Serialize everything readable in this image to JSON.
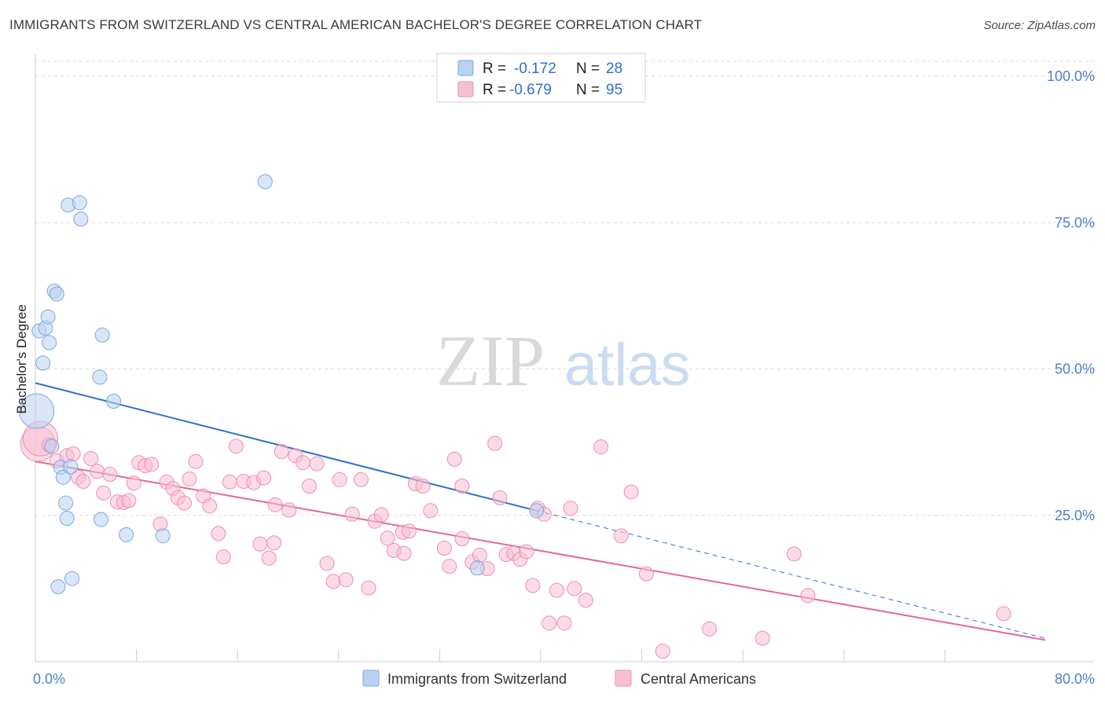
{
  "header": {
    "title": "IMMIGRANTS FROM SWITZERLAND VS CENTRAL AMERICAN BACHELOR'S DEGREE CORRELATION CHART",
    "source": "Source: ZipAtlas.com"
  },
  "watermark": {
    "zip": "ZIP",
    "atlas": "atlas"
  },
  "colors": {
    "blue_fill": "#b9d1f2",
    "blue_stroke": "#7ea6e0",
    "blue_line": "#2f6fd0",
    "pink_fill": "#f7c0d2",
    "pink_stroke": "#ec8fb0",
    "pink_line": "#e46791",
    "grid": "#d9d9d9",
    "tick_label": "#4a7fd0"
  },
  "legend": {
    "rows": [
      {
        "r_label": "R =",
        "r_value": "-0.172",
        "n_label": "N =",
        "n_value": "28"
      },
      {
        "r_label": "R =",
        "r_value": "-0.679",
        "n_label": "N =",
        "n_value": "95"
      }
    ]
  },
  "chart_data": {
    "type": "scatter",
    "title": "IMMIGRANTS FROM SWITZERLAND VS CENTRAL AMERICAN BACHELOR'S DEGREE CORRELATION CHART",
    "xlabel": "",
    "ylabel": "Bachelor's Degree",
    "xlim": [
      0,
      80
    ],
    "ylim": [
      0,
      100
    ],
    "x_tick_labels": [
      "0.0%",
      "80.0%"
    ],
    "y_ticks": [
      25,
      50,
      75,
      100
    ],
    "y_tick_labels": [
      "25.0%",
      "50.0%",
      "75.0%",
      "100.0%"
    ],
    "grid": true,
    "legend_position": "top-center",
    "series": [
      {
        "name": "Immigrants from Switzerland",
        "color": "#b9d1f2",
        "points": [
          [
            0.1,
            42.8
          ],
          [
            0.3,
            56.5
          ],
          [
            0.6,
            51
          ],
          [
            0.8,
            57
          ],
          [
            1.0,
            58.9
          ],
          [
            1.1,
            54.5
          ],
          [
            1.5,
            63.3
          ],
          [
            1.7,
            62.8
          ],
          [
            1.3,
            36.8
          ],
          [
            2.0,
            33.2
          ],
          [
            2.2,
            31.5
          ],
          [
            2.4,
            27.1
          ],
          [
            2.5,
            24.5
          ],
          [
            2.6,
            78
          ],
          [
            2.8,
            33.3
          ],
          [
            3.5,
            78.4
          ],
          [
            3.6,
            75.6
          ],
          [
            5.1,
            48.6
          ],
          [
            5.3,
            55.8
          ],
          [
            6.2,
            44.5
          ],
          [
            7.2,
            21.7
          ],
          [
            10.1,
            21.5
          ],
          [
            18.2,
            82
          ],
          [
            1.8,
            12.8
          ],
          [
            2.9,
            14.2
          ],
          [
            5.2,
            24.3
          ],
          [
            35,
            16
          ],
          [
            39.7,
            25.8
          ]
        ],
        "sizes": [
          1,
          0,
          0,
          0,
          0,
          0,
          0,
          0,
          0,
          0,
          0,
          0,
          0,
          0,
          0,
          0,
          0,
          0,
          0,
          0,
          0,
          0,
          0,
          0,
          0,
          0,
          0,
          0
        ],
        "trend": {
          "x": [
            0,
            39.7
          ],
          "y": [
            47.6,
            25.8
          ],
          "dashed_x": [
            39.7,
            80
          ],
          "dashed_y": [
            25.8,
            4
          ]
        }
      },
      {
        "name": "Central Americans",
        "color": "#f7c0d2",
        "points": [
          [
            0.2,
            37.2
          ],
          [
            0.4,
            38.1
          ],
          [
            1.1,
            37
          ],
          [
            1.7,
            34.3
          ],
          [
            2.5,
            35.2
          ],
          [
            3.0,
            35.5
          ],
          [
            3.4,
            31.5
          ],
          [
            3.8,
            30.8
          ],
          [
            4.4,
            34.7
          ],
          [
            4.9,
            32.5
          ],
          [
            5.4,
            28.8
          ],
          [
            5.9,
            32
          ],
          [
            6.5,
            27.3
          ],
          [
            7.0,
            27.2
          ],
          [
            7.4,
            27.5
          ],
          [
            7.8,
            30.5
          ],
          [
            8.2,
            34
          ],
          [
            8.7,
            33.5
          ],
          [
            9.2,
            33.7
          ],
          [
            9.9,
            23.5
          ],
          [
            10.4,
            30.7
          ],
          [
            10.9,
            29.6
          ],
          [
            11.3,
            28
          ],
          [
            11.8,
            27.1
          ],
          [
            12.2,
            31.2
          ],
          [
            12.7,
            34.2
          ],
          [
            13.3,
            28.3
          ],
          [
            13.8,
            26.6
          ],
          [
            14.5,
            21.9
          ],
          [
            14.9,
            17.9
          ],
          [
            15.4,
            30.7
          ],
          [
            15.9,
            36.8
          ],
          [
            16.5,
            30.8
          ],
          [
            17.3,
            30.6
          ],
          [
            17.8,
            20.1
          ],
          [
            18.1,
            31.4
          ],
          [
            18.5,
            17.7
          ],
          [
            19,
            26.8
          ],
          [
            19.5,
            35.9
          ],
          [
            20.1,
            25.9
          ],
          [
            20.6,
            35.2
          ],
          [
            21.2,
            34
          ],
          [
            21.7,
            30
          ],
          [
            22.3,
            33.8
          ],
          [
            23.1,
            16.8
          ],
          [
            23.6,
            13.7
          ],
          [
            24.1,
            31.1
          ],
          [
            24.6,
            14
          ],
          [
            25.1,
            25.2
          ],
          [
            25.8,
            31.1
          ],
          [
            26.4,
            12.6
          ],
          [
            26.9,
            24
          ],
          [
            27.4,
            25.1
          ],
          [
            27.9,
            21.1
          ],
          [
            28.4,
            19
          ],
          [
            29.1,
            22.1
          ],
          [
            29.6,
            22.3
          ],
          [
            30.1,
            30.4
          ],
          [
            30.7,
            30
          ],
          [
            31.3,
            25.8
          ],
          [
            32.4,
            19.4
          ],
          [
            32.8,
            16.3
          ],
          [
            33.2,
            34.6
          ],
          [
            33.8,
            21
          ],
          [
            34.6,
            17
          ],
          [
            35.2,
            18.2
          ],
          [
            35.8,
            15.9
          ],
          [
            36.4,
            37.3
          ],
          [
            37.3,
            18.3
          ],
          [
            37.9,
            18.5
          ],
          [
            38.4,
            17.5
          ],
          [
            38.9,
            18.8
          ],
          [
            39.4,
            13
          ],
          [
            39.8,
            26.2
          ],
          [
            40.3,
            25.2
          ],
          [
            40.7,
            6.6
          ],
          [
            41.3,
            12.2
          ],
          [
            41.9,
            6.6
          ],
          [
            42.4,
            26.2
          ],
          [
            42.7,
            12.5
          ],
          [
            43.6,
            10.5
          ],
          [
            44.8,
            36.7
          ],
          [
            46.4,
            21.5
          ],
          [
            48.4,
            15
          ],
          [
            49.7,
            1.8
          ],
          [
            53.4,
            5.6
          ],
          [
            57.6,
            4
          ],
          [
            60.1,
            18.4
          ],
          [
            61.2,
            11.3
          ],
          [
            76.7,
            8.2
          ],
          [
            47.2,
            29
          ],
          [
            33.8,
            30
          ],
          [
            18.9,
            20.3
          ],
          [
            29.2,
            18.5
          ],
          [
            36.8,
            28
          ]
        ],
        "sizes": [
          1,
          1,
          0,
          0,
          0,
          0,
          0,
          0,
          0,
          0,
          0,
          0,
          0,
          0,
          0,
          0,
          0,
          0,
          0,
          0,
          0,
          0,
          0,
          0,
          0,
          0,
          0,
          0,
          0,
          0,
          0,
          0,
          0,
          0,
          0,
          0,
          0,
          0,
          0,
          0,
          0,
          0,
          0,
          0,
          0,
          0,
          0,
          0,
          0,
          0,
          0,
          0,
          0,
          0,
          0,
          0,
          0,
          0,
          0,
          0,
          0,
          0,
          0,
          0,
          0,
          0,
          0,
          0,
          0,
          0,
          0,
          0,
          0,
          0,
          0,
          0,
          0,
          0,
          0,
          0,
          0,
          0,
          0,
          0,
          0,
          0,
          0,
          0,
          0,
          0,
          0,
          0,
          0,
          0,
          0
        ],
        "trend": {
          "x": [
            0,
            80
          ],
          "y": [
            34.2,
            3.7
          ]
        }
      }
    ]
  }
}
